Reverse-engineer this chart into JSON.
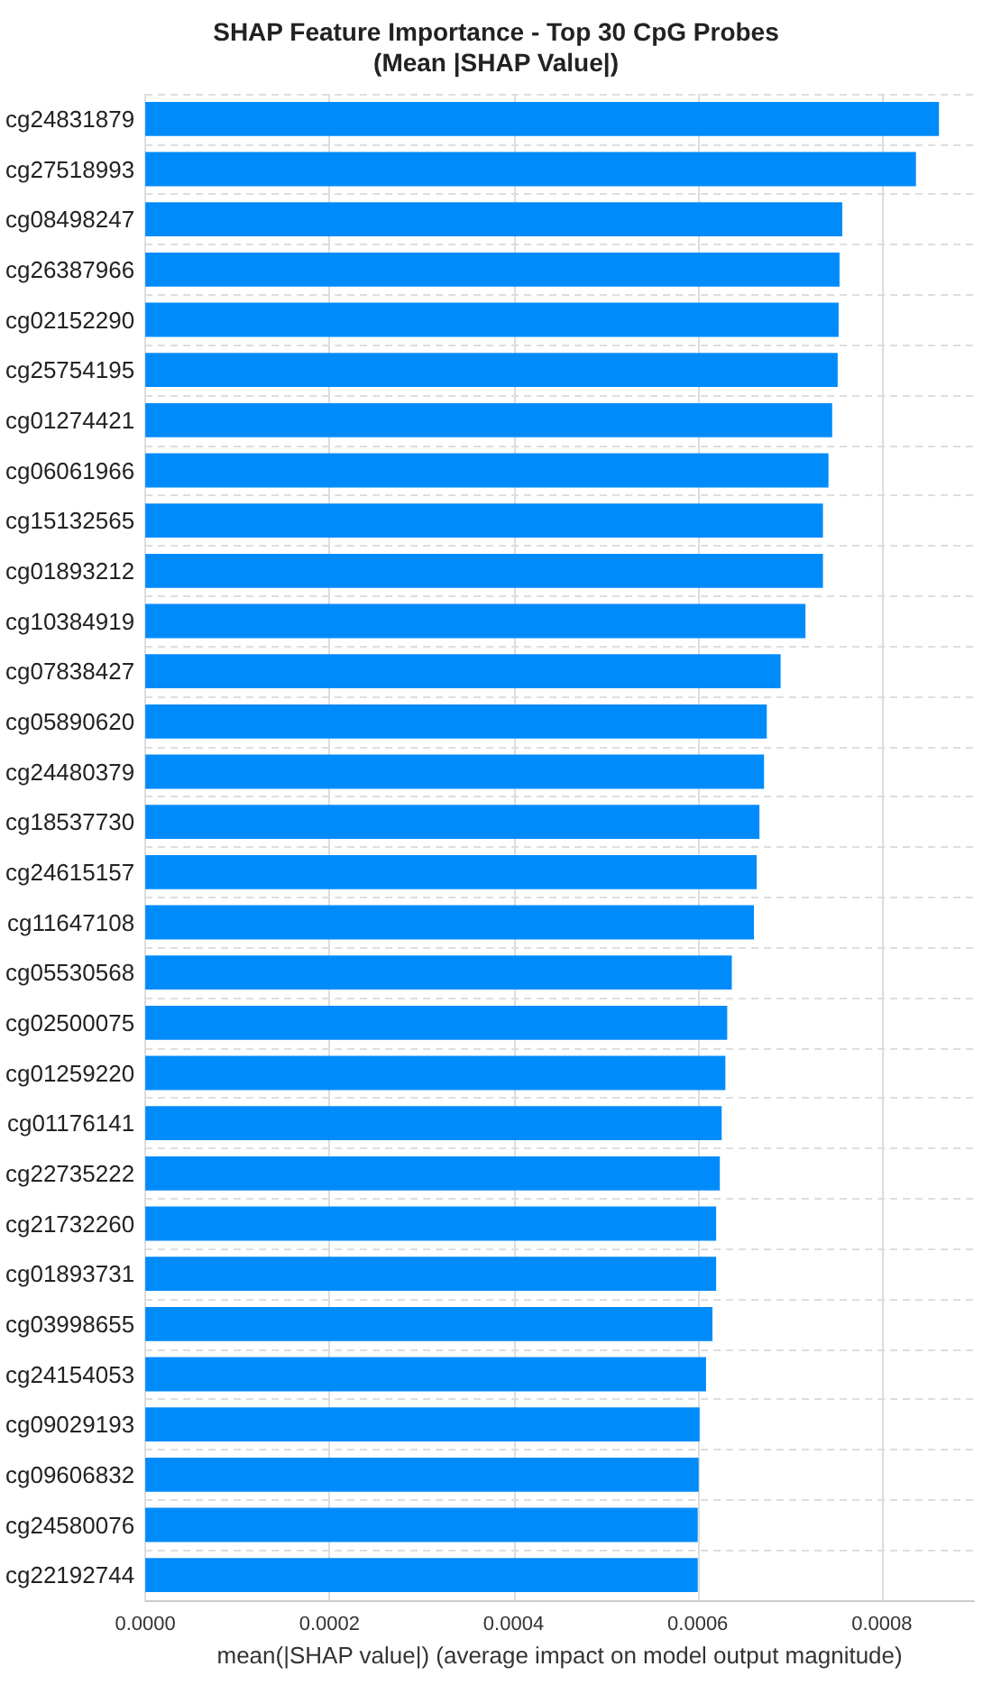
{
  "chart_data": {
    "type": "bar",
    "orientation": "horizontal",
    "title": "SHAP Feature Importance - Top 30 CpG Probes\n(Mean |SHAP Value|)",
    "xlabel": "mean(|SHAP value|) (average impact on model output magnitude)",
    "categories": [
      "cg24831879",
      "cg27518993",
      "cg08498247",
      "cg26387966",
      "cg02152290",
      "cg25754195",
      "cg01274421",
      "cg06061966",
      "cg15132565",
      "cg01893212",
      "cg10384919",
      "cg07838427",
      "cg05890620",
      "cg24480379",
      "cg18537730",
      "cg24615157",
      "cg11647108",
      "cg05530568",
      "cg02500075",
      "cg01259220",
      "cg01176141",
      "cg22735222",
      "cg21732260",
      "cg01893731",
      "cg03998655",
      "cg24154053",
      "cg09029193",
      "cg09606832",
      "cg24580076",
      "cg22192744"
    ],
    "values": [
      0.000862,
      0.000837,
      0.000757,
      0.000754,
      0.000753,
      0.000752,
      0.000746,
      0.000742,
      0.000736,
      0.000736,
      0.000717,
      0.00069,
      0.000675,
      0.000672,
      0.000667,
      0.000664,
      0.000661,
      0.000637,
      0.000632,
      0.00063,
      0.000626,
      0.000624,
      0.00062,
      0.00062,
      0.000616,
      0.000609,
      0.000602,
      0.000601,
      0.0006,
      0.0006
    ],
    "color": "#008bfb",
    "xlim": [
      0,
      0.0009
    ],
    "xticks": [
      {
        "value": 0,
        "label": "0.0000"
      },
      {
        "value": 0.0002,
        "label": "0.0002"
      },
      {
        "value": 0.0004,
        "label": "0.0004"
      },
      {
        "value": 0.0006,
        "label": "0.0006"
      },
      {
        "value": 0.0008,
        "label": "0.0008"
      }
    ],
    "grid": true
  }
}
